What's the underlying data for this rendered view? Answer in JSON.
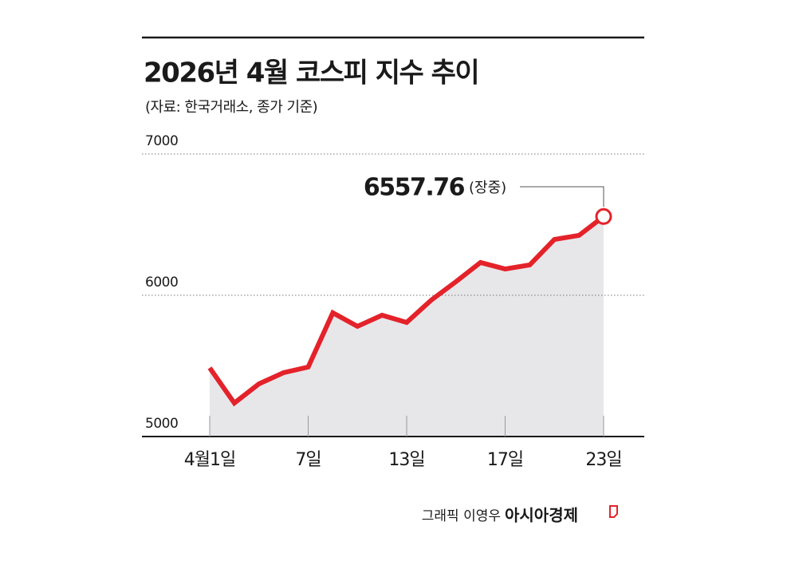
{
  "chart_data": {
    "type": "line",
    "title": "2026년 4월 코스피 지수 추이",
    "subtitle": "(자료: 한국거래소, 종가 기준)",
    "categories": [
      "4월1일",
      null,
      null,
      null,
      "7일",
      null,
      null,
      null,
      "13일",
      null,
      null,
      null,
      "17일",
      null,
      null,
      null,
      "23일"
    ],
    "series": [
      {
        "color": "#e4222a",
        "values": [
          5486,
          5237,
          5373,
          5452,
          5492,
          5876,
          5780,
          5859,
          5808,
          5966,
          6096,
          6232,
          6186,
          6215,
          6395,
          6424,
          6557.76
        ]
      }
    ],
    "area_color": "#e7e7ea",
    "ylim": [
      5000,
      7000
    ],
    "yticks": [
      5000,
      6000,
      7000
    ],
    "grid": true,
    "annotation": "(장중)"
  },
  "footer": {
    "credit": "그래픽 이영우",
    "brand": "아시아경제"
  }
}
